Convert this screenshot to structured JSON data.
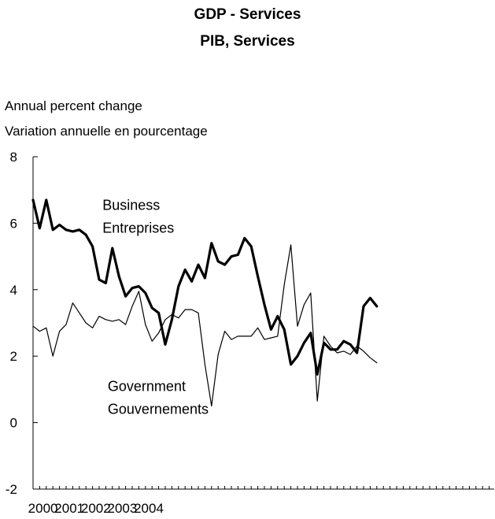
{
  "chart_data": {
    "type": "line",
    "title": "GDP - Services",
    "subtitle": "PIB, Services",
    "ylabel_lines": [
      "Annual percent change",
      "Variation annuelle en pourcentage"
    ],
    "ylim": [
      -2,
      8
    ],
    "yticks": [
      8,
      6,
      4,
      2,
      0,
      -2
    ],
    "xlim": [
      0,
      53
    ],
    "x_tick_labels": [
      "2000",
      "2001",
      "2002",
      "2003",
      "2004"
    ],
    "grid": false,
    "series": [
      {
        "labels": [
          "Business",
          "Entreprises"
        ],
        "label_anchor": {
          "x": 10.5,
          "y": 6.4
        },
        "color": "#000000",
        "values": [
          6.7,
          5.85,
          6.7,
          5.8,
          5.95,
          5.8,
          5.75,
          5.8,
          5.65,
          5.3,
          4.3,
          4.2,
          5.25,
          4.4,
          3.8,
          4.05,
          4.1,
          3.9,
          3.45,
          3.3,
          2.35,
          3.1,
          4.1,
          4.6,
          4.25,
          4.75,
          4.35,
          5.4,
          4.85,
          4.75,
          5.0,
          5.05,
          5.55,
          5.3,
          4.4,
          3.55,
          2.8,
          3.2,
          2.8,
          1.75,
          2.0,
          2.4,
          2.7,
          1.45,
          2.4,
          2.2,
          2.2,
          2.45,
          2.35,
          2.1,
          3.5,
          3.75,
          3.5
        ]
      },
      {
        "labels": [
          "Government",
          "Gouvernements"
        ],
        "label_anchor": {
          "x": 11.3,
          "y": 0.95
        },
        "color": "#000000",
        "values": [
          2.9,
          2.75,
          2.85,
          2.0,
          2.75,
          2.95,
          3.6,
          3.3,
          3.0,
          2.85,
          3.2,
          3.1,
          3.05,
          3.1,
          2.95,
          3.5,
          3.95,
          2.95,
          2.45,
          2.7,
          3.1,
          3.25,
          3.15,
          3.4,
          3.4,
          3.3,
          1.75,
          0.5,
          2.05,
          2.75,
          2.5,
          2.6,
          2.6,
          2.6,
          2.85,
          2.5,
          2.55,
          2.6,
          4.15,
          5.35,
          2.9,
          3.55,
          3.9,
          0.65,
          2.6,
          2.3,
          2.1,
          2.15,
          2.05,
          2.3,
          2.15,
          1.95,
          1.8
        ]
      }
    ]
  }
}
